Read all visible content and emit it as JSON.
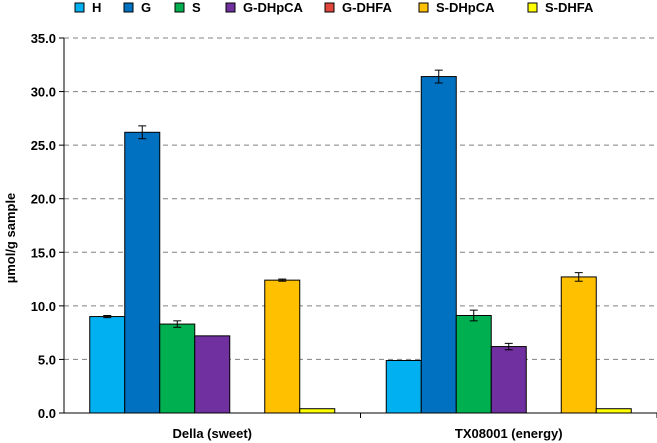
{
  "chart_data": {
    "type": "bar",
    "title": "",
    "xlabel": "",
    "ylabel": "µmol/g sample",
    "ylim": [
      0,
      35
    ],
    "yticks": [
      "0.0",
      "5.0",
      "10.0",
      "15.0",
      "20.0",
      "25.0",
      "30.0",
      "35.0"
    ],
    "grid": "horizontal dashed",
    "legend_position": "top",
    "categories": [
      "Della (sweet)",
      "TX08001 (energy)"
    ],
    "series": [
      {
        "name": "H",
        "color": "#00b0f0",
        "values": [
          9.0,
          4.9
        ],
        "errors": [
          0.1,
          0.0
        ]
      },
      {
        "name": "G",
        "color": "#0070c0",
        "values": [
          26.2,
          31.4
        ],
        "errors": [
          0.6,
          0.6
        ]
      },
      {
        "name": "S",
        "color": "#00b050",
        "values": [
          8.3,
          9.1
        ],
        "errors": [
          0.3,
          0.5
        ]
      },
      {
        "name": "G-DHpCA",
        "color": "#7030a0",
        "values": [
          7.2,
          6.2
        ],
        "errors": [
          0.0,
          0.3
        ]
      },
      {
        "name": "G-DHFA",
        "color": "#e0463c",
        "values": [
          0.0,
          0.0
        ],
        "errors": [
          0.0,
          0.0
        ]
      },
      {
        "name": "S-DHpCA",
        "color": "#ffc000",
        "values": [
          12.4,
          12.7
        ],
        "errors": [
          0.1,
          0.4
        ]
      },
      {
        "name": "S-DHFA",
        "color": "#ffff00",
        "values": [
          0.4,
          0.4
        ],
        "errors": [
          0.0,
          0.0
        ]
      }
    ]
  }
}
